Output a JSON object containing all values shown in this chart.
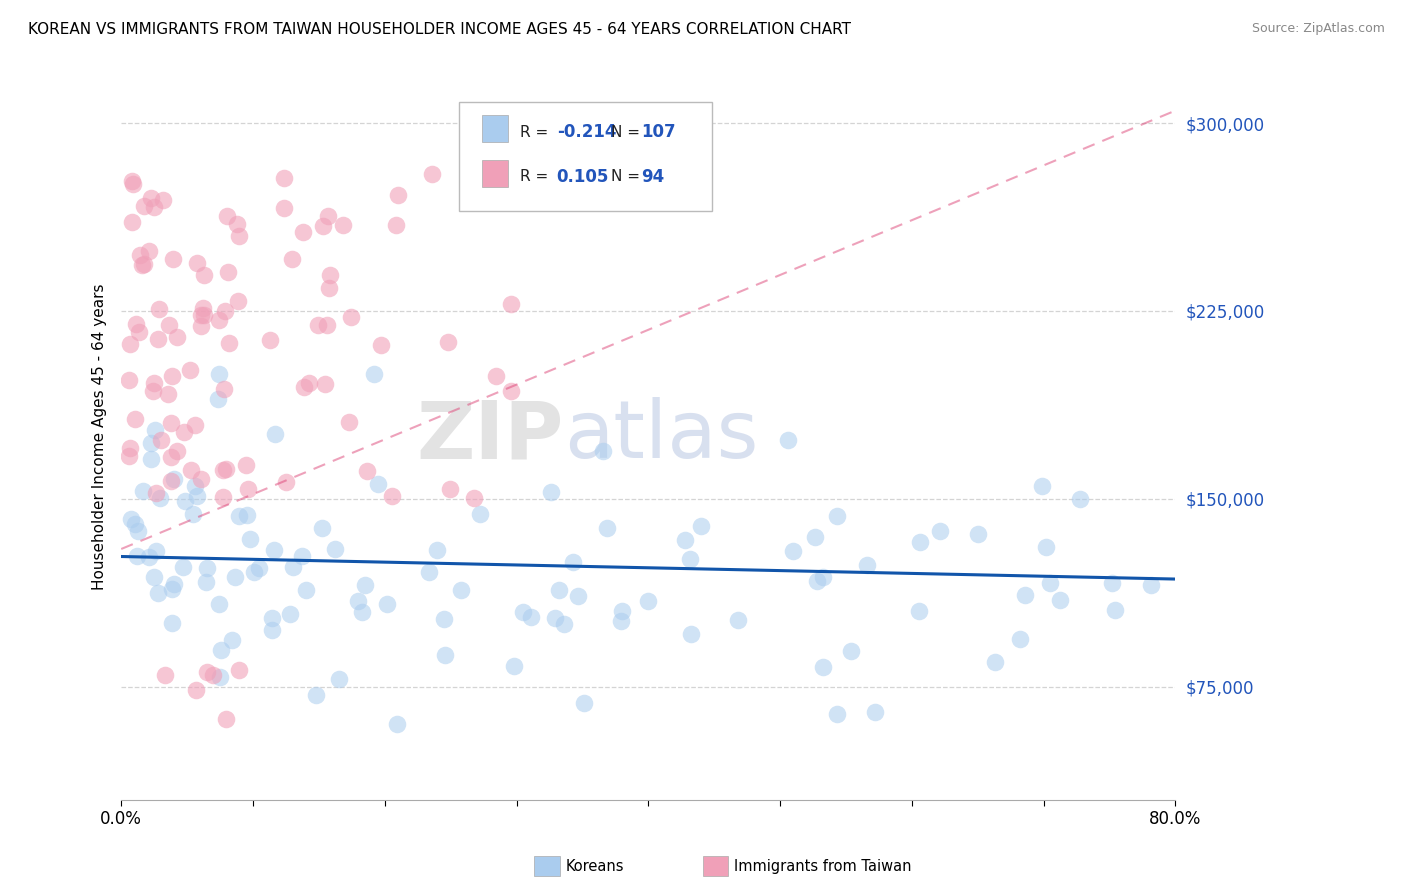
{
  "title": "KOREAN VS IMMIGRANTS FROM TAIWAN HOUSEHOLDER INCOME AGES 45 - 64 YEARS CORRELATION CHART",
  "source": "Source: ZipAtlas.com",
  "ylabel": "Householder Income Ages 45 - 64 years",
  "xlim": [
    0.0,
    0.8
  ],
  "ylim": [
    30000,
    320000
  ],
  "ytick_values": [
    75000,
    150000,
    225000,
    300000
  ],
  "background_color": "#ffffff",
  "grid_color": "#d0d0d0",
  "korean_color": "#aaccee",
  "taiwan_color": "#f0a0b8",
  "korean_line_color": "#1155aa",
  "taiwan_line_color": "#dd4477",
  "watermark_zip": "ZIP",
  "watermark_atlas": "atlas",
  "legend_korean_label": "Koreans",
  "legend_taiwan_label": "Immigrants from Taiwan",
  "korean_line_x0": 0.0,
  "korean_line_y0": 127000,
  "korean_line_x1": 0.8,
  "korean_line_y1": 118000,
  "taiwan_line_x0": 0.0,
  "taiwan_line_y0": 130000,
  "taiwan_line_x1": 0.8,
  "taiwan_line_y1": 305000
}
